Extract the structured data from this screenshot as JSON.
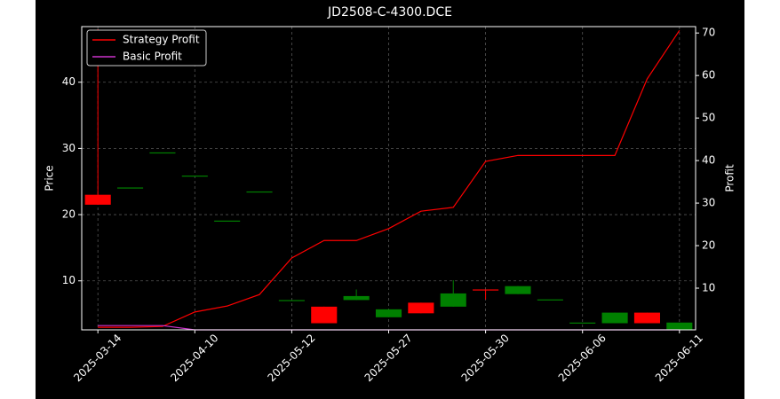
{
  "chart_data": {
    "type": "candlestick",
    "title": "JD2508-C-4300.DCE",
    "y_label": "Price",
    "y2_label": "Profit",
    "categories": [
      "2025-03-14",
      null,
      null,
      "2025-04-10",
      null,
      null,
      "2025-05-12",
      null,
      null,
      "2025-05-27",
      null,
      null,
      "2025-05-30",
      null,
      null,
      "2025-06-06",
      null,
      null,
      "2025-06-11"
    ],
    "open": [
      23.0,
      24.1,
      29.4,
      25.9,
      19.1,
      23.5,
      7.1,
      6.1,
      7.1,
      4.5,
      6.7,
      6.1,
      8.7,
      8.0,
      7.2,
      3.7,
      3.6,
      5.2,
      2.6
    ],
    "high": [
      48.0,
      24.1,
      29.4,
      25.9,
      19.1,
      23.5,
      7.1,
      6.1,
      8.7,
      5.7,
      6.7,
      10.1,
      8.7,
      9.2,
      7.2,
      3.7,
      5.2,
      5.2,
      3.7
    ],
    "low": [
      21.5,
      24.1,
      29.4,
      25.9,
      19.1,
      23.5,
      7.1,
      3.6,
      7.1,
      4.5,
      5.1,
      6.1,
      7.2,
      8.0,
      7.2,
      3.7,
      3.6,
      3.6,
      2.6
    ],
    "close": [
      21.5,
      24.1,
      29.4,
      25.9,
      19.1,
      23.5,
      7.1,
      3.6,
      7.7,
      5.7,
      5.1,
      8.1,
      8.6,
      9.2,
      7.2,
      3.7,
      5.2,
      3.6,
      3.7
    ],
    "up_color": "#008000",
    "down_color": "#ff0000",
    "series": [
      {
        "name": "Strategy Profit",
        "color": "#ff0000",
        "axis": "y2",
        "values": [
          0.8,
          0.8,
          1.0,
          4.4,
          5.8,
          8.5,
          17.1,
          21.2,
          21.2,
          24.0,
          28.1,
          29.0,
          39.8,
          41.2,
          41.2,
          41.2,
          41.2,
          59.2,
          70.6
        ]
      },
      {
        "name": "Basic Profit",
        "color": "#cc33cc",
        "axis": "y2",
        "values": [
          1.2,
          1.2,
          1.2,
          0.2,
          0.2,
          0.2,
          0.2,
          0.2,
          0.2,
          0.2,
          0.2,
          0.2,
          0.2,
          0.2,
          0.2,
          0.2,
          0.2,
          0.2,
          0.2
        ]
      }
    ],
    "ylim": [
      2.6,
      48.4
    ],
    "yticks": [
      10,
      20,
      30,
      40
    ],
    "y2lim": [
      0.2,
      71.5
    ],
    "y2ticks": [
      10,
      20,
      30,
      40,
      50,
      60,
      70
    ],
    "grid": true,
    "legend": "upper left"
  }
}
